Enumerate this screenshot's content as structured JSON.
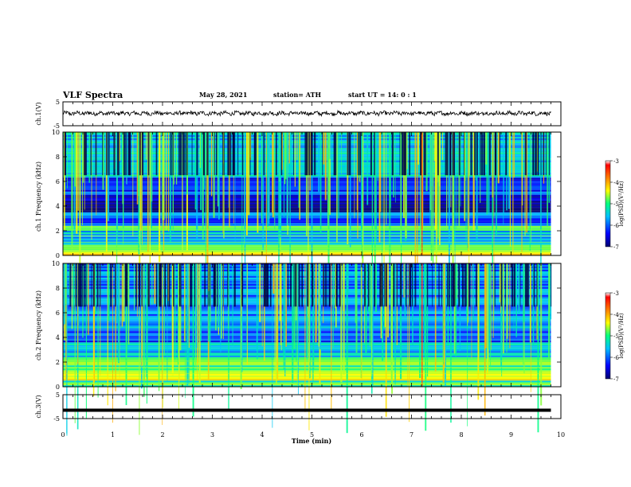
{
  "header": {
    "title": "VLF Spectra",
    "date": "May 28, 2021",
    "station": "station= ATH",
    "start": "start  UT =   14: 0  : 1"
  },
  "chart_data": [
    {
      "type": "line",
      "name": "ch1-waveform",
      "ylabel": "ch.1(V)",
      "ylim": [
        -5,
        5
      ],
      "yticks": [
        "5",
        "-5"
      ],
      "xlim": [
        0,
        10
      ],
      "approx_value": 0.2,
      "x_start": 0,
      "x_end": 9.8
    },
    {
      "type": "heatmap",
      "name": "ch1-spectrogram",
      "ylabel": "ch.1 Frequency (kHz)",
      "ylim": [
        0,
        10
      ],
      "yticks": [
        "0",
        "2",
        "4",
        "6",
        "8",
        "10"
      ],
      "xlim": [
        0,
        10
      ],
      "x_end": 9.8,
      "colorbar": {
        "label": "log(PSD)(V²/Hz)",
        "ticks": [
          "-3",
          "-4",
          "-5",
          "-6",
          "-7"
        ],
        "range": [
          -7,
          -3
        ],
        "colors": [
          "#000070",
          "#0000ff",
          "#00c0ff",
          "#00ff80",
          "#ffff00",
          "#ff8000",
          "#ff0000",
          "#ffffff"
        ]
      },
      "bands": [
        {
          "from": 0.0,
          "to": 0.3,
          "level": -4.5
        },
        {
          "from": 0.3,
          "to": 1.0,
          "level": -5.0
        },
        {
          "from": 1.0,
          "to": 2.0,
          "level": -5.6
        },
        {
          "from": 2.0,
          "to": 2.4,
          "level": -4.9
        },
        {
          "from": 2.4,
          "to": 3.0,
          "level": -6.3
        },
        {
          "from": 3.0,
          "to": 3.5,
          "level": -6.0
        },
        {
          "from": 3.5,
          "to": 4.8,
          "level": -6.9
        },
        {
          "from": 4.8,
          "to": 6.3,
          "level": -6.2
        },
        {
          "from": 6.3,
          "to": 10.0,
          "level": -5.5
        }
      ],
      "event_time_min": 7.2
    },
    {
      "type": "heatmap",
      "name": "ch2-spectrogram",
      "ylabel": "ch.2 Frequency (kHz)",
      "ylim": [
        0,
        10
      ],
      "yticks": [
        "0",
        "2",
        "4",
        "6",
        "8",
        "10"
      ],
      "xlim": [
        0,
        10
      ],
      "x_end": 9.8,
      "colorbar": {
        "label": "log(PSD)(V²/Hz)",
        "ticks": [
          "-3",
          "-4",
          "-5",
          "-6",
          "-7"
        ],
        "range": [
          -7,
          -3
        ],
        "colors": [
          "#000070",
          "#0000ff",
          "#00c0ff",
          "#00ff80",
          "#ffff00",
          "#ff8000",
          "#ff0000",
          "#ffffff"
        ]
      },
      "bands": [
        {
          "from": 0.0,
          "to": 0.5,
          "level": -5.0
        },
        {
          "from": 0.5,
          "to": 1.2,
          "level": -4.4
        },
        {
          "from": 1.2,
          "to": 2.4,
          "level": -4.9
        },
        {
          "from": 2.4,
          "to": 3.0,
          "level": -5.6
        },
        {
          "from": 3.0,
          "to": 3.6,
          "level": -5.3
        },
        {
          "from": 3.6,
          "to": 4.5,
          "level": -6.2
        },
        {
          "from": 4.5,
          "to": 5.5,
          "level": -5.8
        },
        {
          "from": 5.5,
          "to": 10.0,
          "level": -5.9
        }
      ],
      "event_time_min": 7.2
    },
    {
      "type": "line",
      "name": "ch3-waveform",
      "ylabel": "ch.3(V)",
      "ylim": [
        -5,
        5
      ],
      "yticks": [
        "5",
        "-5"
      ],
      "xlim": [
        0,
        10
      ],
      "approx_value": -1.5,
      "x_start": 0,
      "x_end": 9.8
    }
  ],
  "xaxis": {
    "label": "Time  (min)",
    "ticks": [
      "0",
      "1",
      "2",
      "3",
      "4",
      "5",
      "6",
      "7",
      "8",
      "9",
      "10"
    ]
  }
}
